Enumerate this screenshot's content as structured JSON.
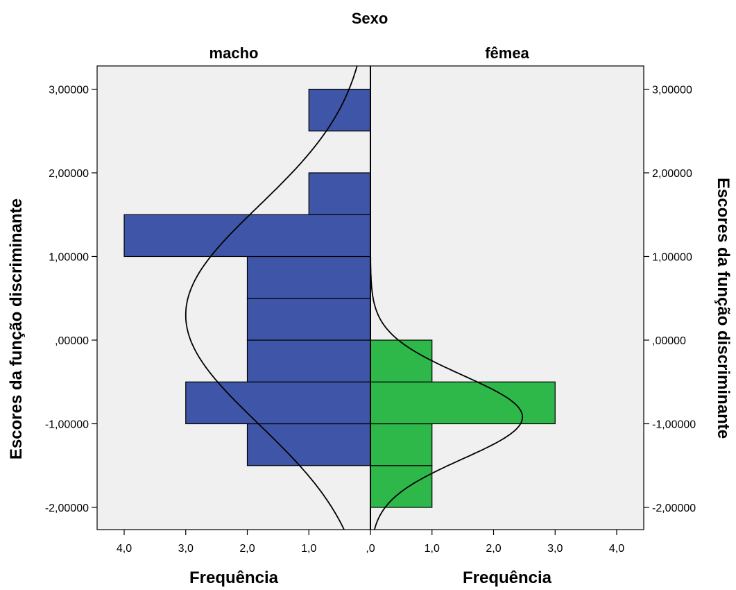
{
  "chart_data": {
    "type": "histogram",
    "title": "Sexo",
    "panels": [
      {
        "name": "macho",
        "color": "#3f56a8",
        "bins": [
          {
            "from": -2.5,
            "to": -1.5,
            "frequency": 0
          },
          {
            "from": -1.5,
            "to": -1.0,
            "frequency": 2
          },
          {
            "from": -1.0,
            "to": -0.5,
            "frequency": 3
          },
          {
            "from": -0.5,
            "to": 0.0,
            "frequency": 2
          },
          {
            "from": 0.0,
            "to": 0.5,
            "frequency": 2
          },
          {
            "from": 0.5,
            "to": 1.0,
            "frequency": 2
          },
          {
            "from": 1.0,
            "to": 1.5,
            "frequency": 4
          },
          {
            "from": 1.5,
            "to": 2.0,
            "frequency": 1
          },
          {
            "from": 2.5,
            "to": 3.0,
            "frequency": 1
          }
        ],
        "normal_curve": {
          "mean": 0.3,
          "sd": 1.3,
          "peak": 3.0
        }
      },
      {
        "name": "fêmea",
        "color": "#2eb84a",
        "bins": [
          {
            "from": -2.0,
            "to": -1.5,
            "frequency": 1
          },
          {
            "from": -1.5,
            "to": -1.0,
            "frequency": 1
          },
          {
            "from": -1.0,
            "to": -0.5,
            "frequency": 3
          },
          {
            "from": -0.5,
            "to": 0.0,
            "frequency": 1
          }
        ],
        "normal_curve": {
          "mean": -0.92,
          "sd": 0.5,
          "peak": 2.47
        }
      }
    ],
    "x_ticks": [
      "4,0",
      "3,0",
      "2,0",
      "1,0",
      ",0",
      "1,0",
      "2,0",
      "3,0",
      "4,0"
    ],
    "xlim": [
      0,
      4
    ],
    "xlabel": "Frequência",
    "y_ticks": [
      {
        "value": 3,
        "label": "3,00000"
      },
      {
        "value": 2,
        "label": "2,00000"
      },
      {
        "value": 1,
        "label": "1,00000"
      },
      {
        "value": 0,
        "label": ",00000"
      },
      {
        "value": -1,
        "label": "-1,00000"
      },
      {
        "value": -2,
        "label": "-2,00000"
      }
    ],
    "ylim": [
      -2.28,
      3.29
    ],
    "ylabel": "Escores da função discriminante",
    "background": "#f0f0f0"
  }
}
